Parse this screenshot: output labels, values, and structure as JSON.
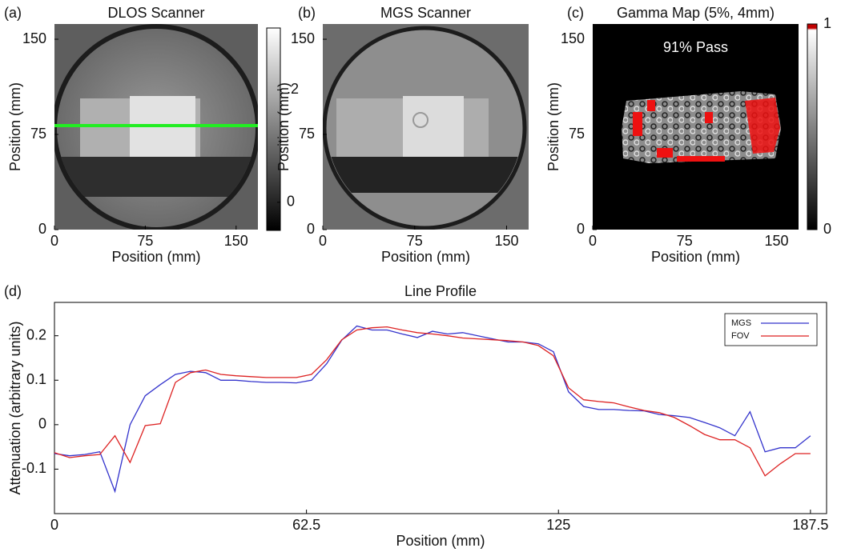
{
  "chart_data": [
    {
      "type": "image",
      "panel": "(a)",
      "title": "DLOS Scanner",
      "xlabel": "Position (mm)",
      "ylabel": "Position (mm)",
      "xlim": [
        0,
        168
      ],
      "ylim": [
        0,
        162
      ],
      "xticks": [
        0,
        75,
        150
      ],
      "yticks": [
        0,
        75,
        150
      ],
      "colorbar": {
        "clim": [
          -0.05,
          0.31
        ],
        "ticks": [
          0,
          {
            "value": 0.2,
            "label": ".2"
          }
        ],
        "colormap": "gray"
      }
    },
    {
      "type": "image",
      "panel": "(b)",
      "title": "MGS Scanner",
      "xlabel": "Position (mm)",
      "ylabel": "Position (mm)",
      "xlim": [
        0,
        168
      ],
      "ylim": [
        0,
        162
      ],
      "xticks": [
        0,
        75,
        150
      ],
      "yticks": [
        0,
        75,
        150
      ]
    },
    {
      "type": "image",
      "panel": "(c)",
      "title": "Gamma Map (5%, 4mm)",
      "xlabel": "Position (mm)",
      "ylabel": "Position (mm)",
      "annotation": "91% Pass",
      "xlim": [
        0,
        168
      ],
      "ylim": [
        0,
        162
      ],
      "xticks": [
        0,
        75,
        150
      ],
      "yticks": [
        0,
        75,
        150
      ],
      "colorbar": {
        "clim": [
          0,
          1
        ],
        "ticks": [
          0,
          1
        ],
        "colormap": "gray"
      }
    },
    {
      "type": "line",
      "panel": "(d)",
      "title": "Line Profile",
      "xlabel": "Position (mm)",
      "ylabel": "Attenuation (arbitrary units)",
      "xlim": [
        0,
        191.5
      ],
      "ylim": [
        -0.2,
        0.275
      ],
      "xticks": [
        0,
        62.5,
        125,
        187.5
      ],
      "yticks": [
        0.2,
        0.1,
        0,
        -0.1
      ],
      "legend": "upper right",
      "x": [
        0,
        3.75,
        7.5,
        11.25,
        15,
        18.75,
        22.5,
        26.25,
        30,
        33.75,
        37.5,
        41.25,
        45,
        48.75,
        52.5,
        56.25,
        60,
        63.75,
        67.5,
        71.25,
        75,
        78.75,
        82.5,
        86.25,
        90,
        93.75,
        97.5,
        101.25,
        105,
        108.75,
        112.5,
        116.25,
        120,
        123.75,
        127.5,
        131.25,
        135,
        138.75,
        142.5,
        146.25,
        150,
        153.75,
        157.5,
        161.25,
        165,
        168.75,
        172.5,
        176.25,
        180,
        183.75,
        187.5
      ],
      "series": [
        {
          "name": "MGS",
          "color": "#3333cc",
          "values": [
            -0.065,
            -0.07,
            -0.067,
            -0.061,
            -0.15,
            0.0,
            0.065,
            0.09,
            0.113,
            0.12,
            0.117,
            0.1,
            0.1,
            0.097,
            0.095,
            0.095,
            0.094,
            0.1,
            0.137,
            0.19,
            0.222,
            0.213,
            0.213,
            0.204,
            0.196,
            0.21,
            0.204,
            0.207,
            0.2,
            0.193,
            0.186,
            0.186,
            0.182,
            0.164,
            0.074,
            0.041,
            0.034,
            0.034,
            0.032,
            0.031,
            0.023,
            0.02,
            0.016,
            0.005,
            -0.007,
            -0.025,
            0.029,
            -0.061,
            -0.052,
            -0.052,
            -0.025
          ]
        },
        {
          "name": "FOV",
          "color": "#dd2222",
          "values": [
            -0.063,
            -0.074,
            -0.07,
            -0.067,
            -0.025,
            -0.085,
            -0.002,
            0.002,
            0.095,
            0.117,
            0.123,
            0.113,
            0.11,
            0.108,
            0.106,
            0.106,
            0.106,
            0.113,
            0.146,
            0.191,
            0.213,
            0.218,
            0.22,
            0.213,
            0.207,
            0.204,
            0.2,
            0.195,
            0.193,
            0.191,
            0.189,
            0.186,
            0.178,
            0.155,
            0.083,
            0.056,
            0.052,
            0.049,
            0.04,
            0.032,
            0.027,
            0.016,
            -0.002,
            -0.022,
            -0.034,
            -0.034,
            -0.052,
            -0.115,
            -0.088,
            -0.065,
            -0.065
          ]
        }
      ]
    }
  ]
}
